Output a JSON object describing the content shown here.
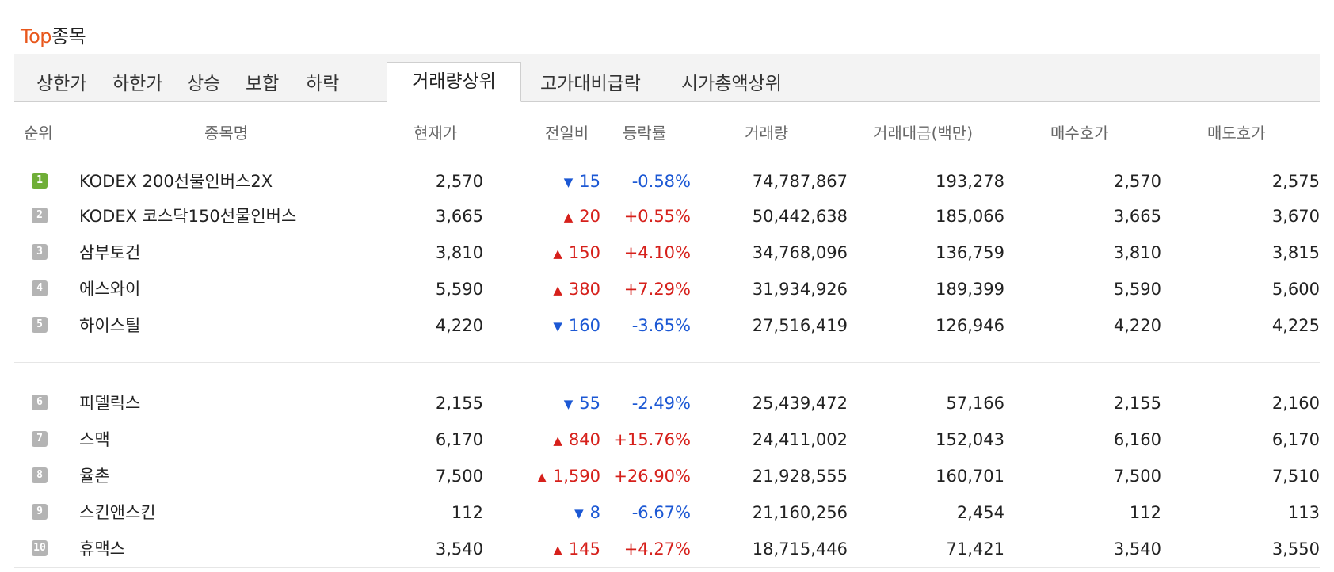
{
  "title": {
    "accent": "Top",
    "rest": "종목"
  },
  "tabs": [
    "상한가",
    "하한가",
    "상승",
    "보합",
    "하락",
    "거래량상위",
    "고가대비급락",
    "시가총액상위"
  ],
  "active_tab": "거래량상위",
  "columns": {
    "rank": "순위",
    "name": "종목명",
    "price": "현재가",
    "change": "전일비",
    "rate": "등락률",
    "volume": "거래량",
    "amount": "거래대금(백만)",
    "bid": "매수호가",
    "ask": "매도호가"
  },
  "colors": {
    "up": "#d6201b",
    "down": "#1c58d4",
    "accent": "#e8571c",
    "rank_first": "#6fae37",
    "rank_other": "#b4b4b4"
  },
  "rows": [
    {
      "rank": "1",
      "name": "KODEX 200선물인버스2X",
      "price": "2,570",
      "dir": "down",
      "change": "15",
      "rate": "-0.58%",
      "volume": "74,787,867",
      "amount": "193,278",
      "bid": "2,570",
      "ask": "2,575"
    },
    {
      "rank": "2",
      "name": "KODEX 코스닥150선물인버스",
      "price": "3,665",
      "dir": "up",
      "change": "20",
      "rate": "+0.55%",
      "volume": "50,442,638",
      "amount": "185,066",
      "bid": "3,665",
      "ask": "3,670"
    },
    {
      "rank": "3",
      "name": "삼부토건",
      "price": "3,810",
      "dir": "up",
      "change": "150",
      "rate": "+4.10%",
      "volume": "34,768,096",
      "amount": "136,759",
      "bid": "3,810",
      "ask": "3,815"
    },
    {
      "rank": "4",
      "name": "에스와이",
      "price": "5,590",
      "dir": "up",
      "change": "380",
      "rate": "+7.29%",
      "volume": "31,934,926",
      "amount": "189,399",
      "bid": "5,590",
      "ask": "5,600"
    },
    {
      "rank": "5",
      "name": "하이스틸",
      "price": "4,220",
      "dir": "down",
      "change": "160",
      "rate": "-3.65%",
      "volume": "27,516,419",
      "amount": "126,946",
      "bid": "4,220",
      "ask": "4,225"
    },
    {
      "rank": "6",
      "name": "피델릭스",
      "price": "2,155",
      "dir": "down",
      "change": "55",
      "rate": "-2.49%",
      "volume": "25,439,472",
      "amount": "57,166",
      "bid": "2,155",
      "ask": "2,160"
    },
    {
      "rank": "7",
      "name": "스맥",
      "price": "6,170",
      "dir": "up",
      "change": "840",
      "rate": "+15.76%",
      "volume": "24,411,002",
      "amount": "152,043",
      "bid": "6,160",
      "ask": "6,170"
    },
    {
      "rank": "8",
      "name": "율촌",
      "price": "7,500",
      "dir": "up",
      "change": "1,590",
      "rate": "+26.90%",
      "volume": "21,928,555",
      "amount": "160,701",
      "bid": "7,500",
      "ask": "7,510"
    },
    {
      "rank": "9",
      "name": "스킨앤스킨",
      "price": "112",
      "dir": "down",
      "change": "8",
      "rate": "-6.67%",
      "volume": "21,160,256",
      "amount": "2,454",
      "bid": "112",
      "ask": "113"
    },
    {
      "rank": "10",
      "name": "휴맥스",
      "price": "3,540",
      "dir": "up",
      "change": "145",
      "rate": "+4.27%",
      "volume": "18,715,446",
      "amount": "71,421",
      "bid": "3,540",
      "ask": "3,550"
    }
  ]
}
